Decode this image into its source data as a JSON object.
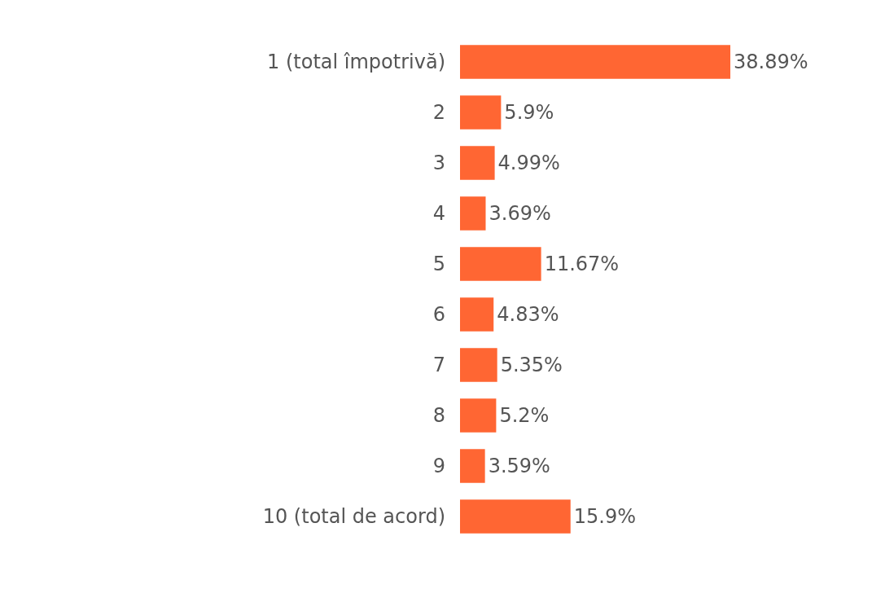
{
  "chart_data": {
    "type": "bar",
    "orientation": "horizontal",
    "categories": [
      "1 (total împotrivă)",
      "2",
      "3",
      "4",
      "5",
      "6",
      "7",
      "8",
      "9",
      "10 (total de acord)"
    ],
    "values": [
      38.89,
      5.9,
      4.99,
      3.69,
      11.67,
      4.83,
      5.35,
      5.2,
      3.59,
      15.9
    ],
    "value_labels": [
      "38.89%",
      "5.9%",
      "4.99%",
      "3.69%",
      "11.67%",
      "4.83%",
      "5.35%",
      "5.2%",
      "3.59%",
      "15.9%"
    ],
    "color": "#ff6633"
  }
}
